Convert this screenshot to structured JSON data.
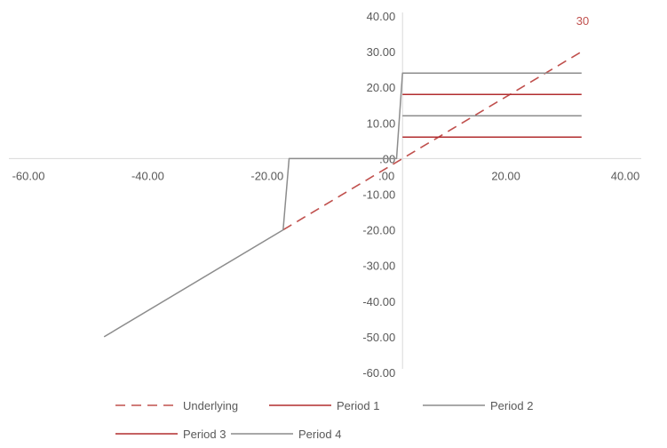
{
  "chart_data": {
    "type": "scatter",
    "xlim": [
      -60,
      40
    ],
    "ylim": [
      -60,
      40
    ],
    "x_ticks": [
      "-60.00",
      "-40.00",
      "-20.00",
      ".00",
      "20.00",
      "40.00"
    ],
    "y_ticks": [
      "40.00",
      "30.00",
      "20.00",
      "10.00",
      ".00",
      "-10.00",
      "-20.00",
      "-30.00",
      "-40.00",
      "-50.00",
      "-60.00"
    ],
    "grid": false,
    "legend_position": "bottom",
    "series": [
      {
        "name": "Underlying",
        "color": "#c0504d",
        "dash": "dashed",
        "x": [
          -20,
          30
        ],
        "y": [
          -20,
          30
        ]
      },
      {
        "name": "Period 1",
        "color": "#b22d2f",
        "dash": "solid",
        "x": [
          0,
          30
        ],
        "y": [
          6,
          6
        ]
      },
      {
        "name": "Period 2",
        "color": "#8c8c8c",
        "dash": "solid",
        "x": [
          0,
          30
        ],
        "y": [
          12,
          12
        ]
      },
      {
        "name": "Period 3",
        "color": "#b22d2f",
        "dash": "solid",
        "x": [
          0,
          30
        ],
        "y": [
          18,
          18
        ]
      },
      {
        "name": "Period 4",
        "color": "#8c8c8c",
        "dash": "solid",
        "x": [
          -50,
          -20,
          -19,
          -1,
          0,
          30
        ],
        "y": [
          -50,
          -20,
          0,
          0,
          24,
          24
        ]
      }
    ],
    "annotations": [
      {
        "text": "30",
        "x": 30,
        "y": 30,
        "color": "#c0504d"
      }
    ]
  }
}
